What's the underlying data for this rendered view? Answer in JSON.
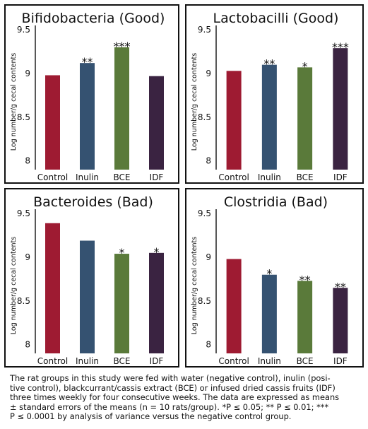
{
  "chart_data": [
    {
      "type": "bar",
      "title": "Bifidobacteria (Good)",
      "ylabel": "Log number/g cecal contents",
      "categories": [
        "Control",
        "Inulin",
        "BCE",
        "IDF"
      ],
      "values": [
        8.98,
        9.12,
        9.3,
        8.97
      ],
      "significance": [
        "",
        "**",
        "***",
        ""
      ],
      "yticks": [
        "8",
        "8.5",
        "9",
        "9.5"
      ],
      "ylim": [
        7.9,
        9.55
      ],
      "grid": false,
      "colors": [
        "#9e1b32",
        "#355271",
        "#5a7a3a",
        "#3a2341"
      ]
    },
    {
      "type": "bar",
      "title": "Lactobacilli (Good)",
      "ylabel": "Log number/g cecal contents",
      "categories": [
        "Control",
        "Inulin",
        "BCE",
        "IDF"
      ],
      "values": [
        9.03,
        9.1,
        9.07,
        9.29
      ],
      "significance": [
        "",
        "**",
        "*",
        "***"
      ],
      "yticks": [
        "8",
        "8.5",
        "9",
        "9.5"
      ],
      "ylim": [
        7.9,
        9.55
      ],
      "grid": false,
      "colors": [
        "#9e1b32",
        "#355271",
        "#5a7a3a",
        "#3a2341"
      ]
    },
    {
      "type": "bar",
      "title": "Bacteroides (Bad)",
      "ylabel": "Log number/g cecal contents",
      "categories": [
        "Control",
        "Inulin",
        "BCE",
        "IDF"
      ],
      "values": [
        9.39,
        9.19,
        9.04,
        9.05
      ],
      "significance": [
        "",
        "",
        "*",
        "*"
      ],
      "yticks": [
        "8",
        "8.5",
        "9",
        "9.5"
      ],
      "ylim": [
        7.9,
        9.55
      ],
      "grid": false,
      "colors": [
        "#9e1b32",
        "#355271",
        "#5a7a3a",
        "#3a2341"
      ]
    },
    {
      "type": "bar",
      "title": "Clostridia (Bad)",
      "ylabel": "Log number/g cecal contents",
      "categories": [
        "Control",
        "Inulin",
        "BCE",
        "IDF"
      ],
      "values": [
        8.98,
        8.8,
        8.73,
        8.65
      ],
      "significance": [
        "",
        "*",
        "**",
        "**"
      ],
      "yticks": [
        "8",
        "8.5",
        "9",
        "9.5"
      ],
      "ylim": [
        7.9,
        9.55
      ],
      "grid": false,
      "colors": [
        "#9e1b32",
        "#355271",
        "#5a7a3a",
        "#3a2341"
      ]
    }
  ],
  "caption": [
    "The rat groups in this study were fed with water (negative control), inulin (posi-",
    "tive control), blackcurrant/cassis extract (BCE) or infused dried cassis fruits (IDF)",
    "three times weekly for four consecutive weeks. The data are expressed as means",
    "± standard errors of the means (n = 10 rats/group). *P ≤ 0.05; ** P ≤ 0.01; ***",
    "P ≤ 0.0001 by analysis of variance versus the negative control group."
  ]
}
